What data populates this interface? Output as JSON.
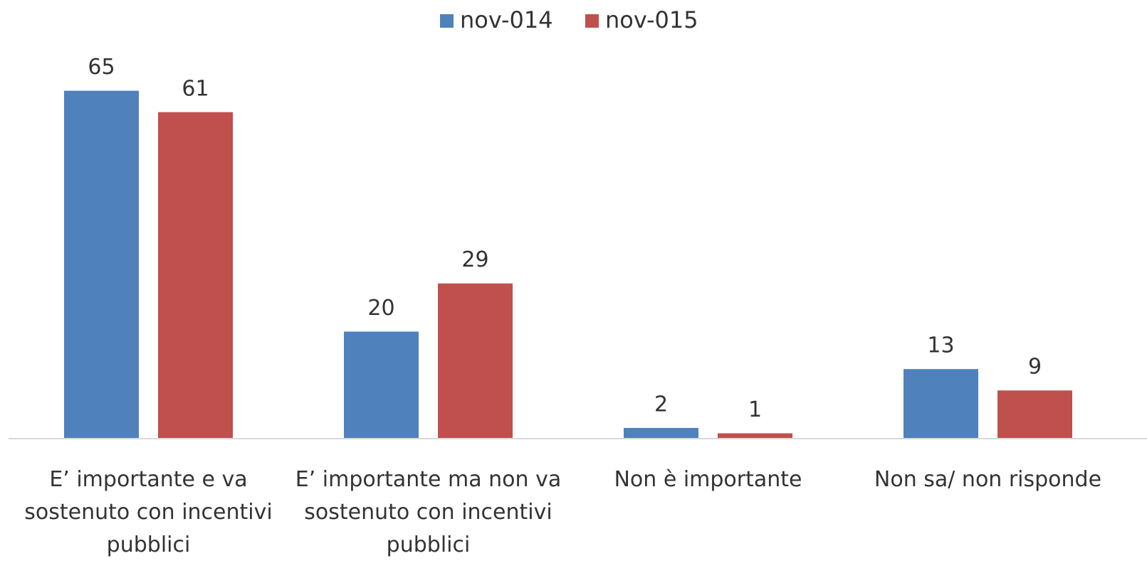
{
  "chart_data": {
    "type": "bar",
    "categories": [
      "E’ importante e va sostenuto con incentivi pubblici",
      "E’ importante ma non va sostenuto con incentivi pubblici",
      "Non è importante",
      "Non sa/ non risponde"
    ],
    "series": [
      {
        "name": "nov-014",
        "color": "#4f81bd",
        "values": [
          65,
          20,
          2,
          13
        ]
      },
      {
        "name": "nov-015",
        "color": "#c0504d",
        "values": [
          61,
          29,
          1,
          9
        ]
      }
    ],
    "ylim": [
      0,
      70
    ],
    "legend": "top"
  }
}
